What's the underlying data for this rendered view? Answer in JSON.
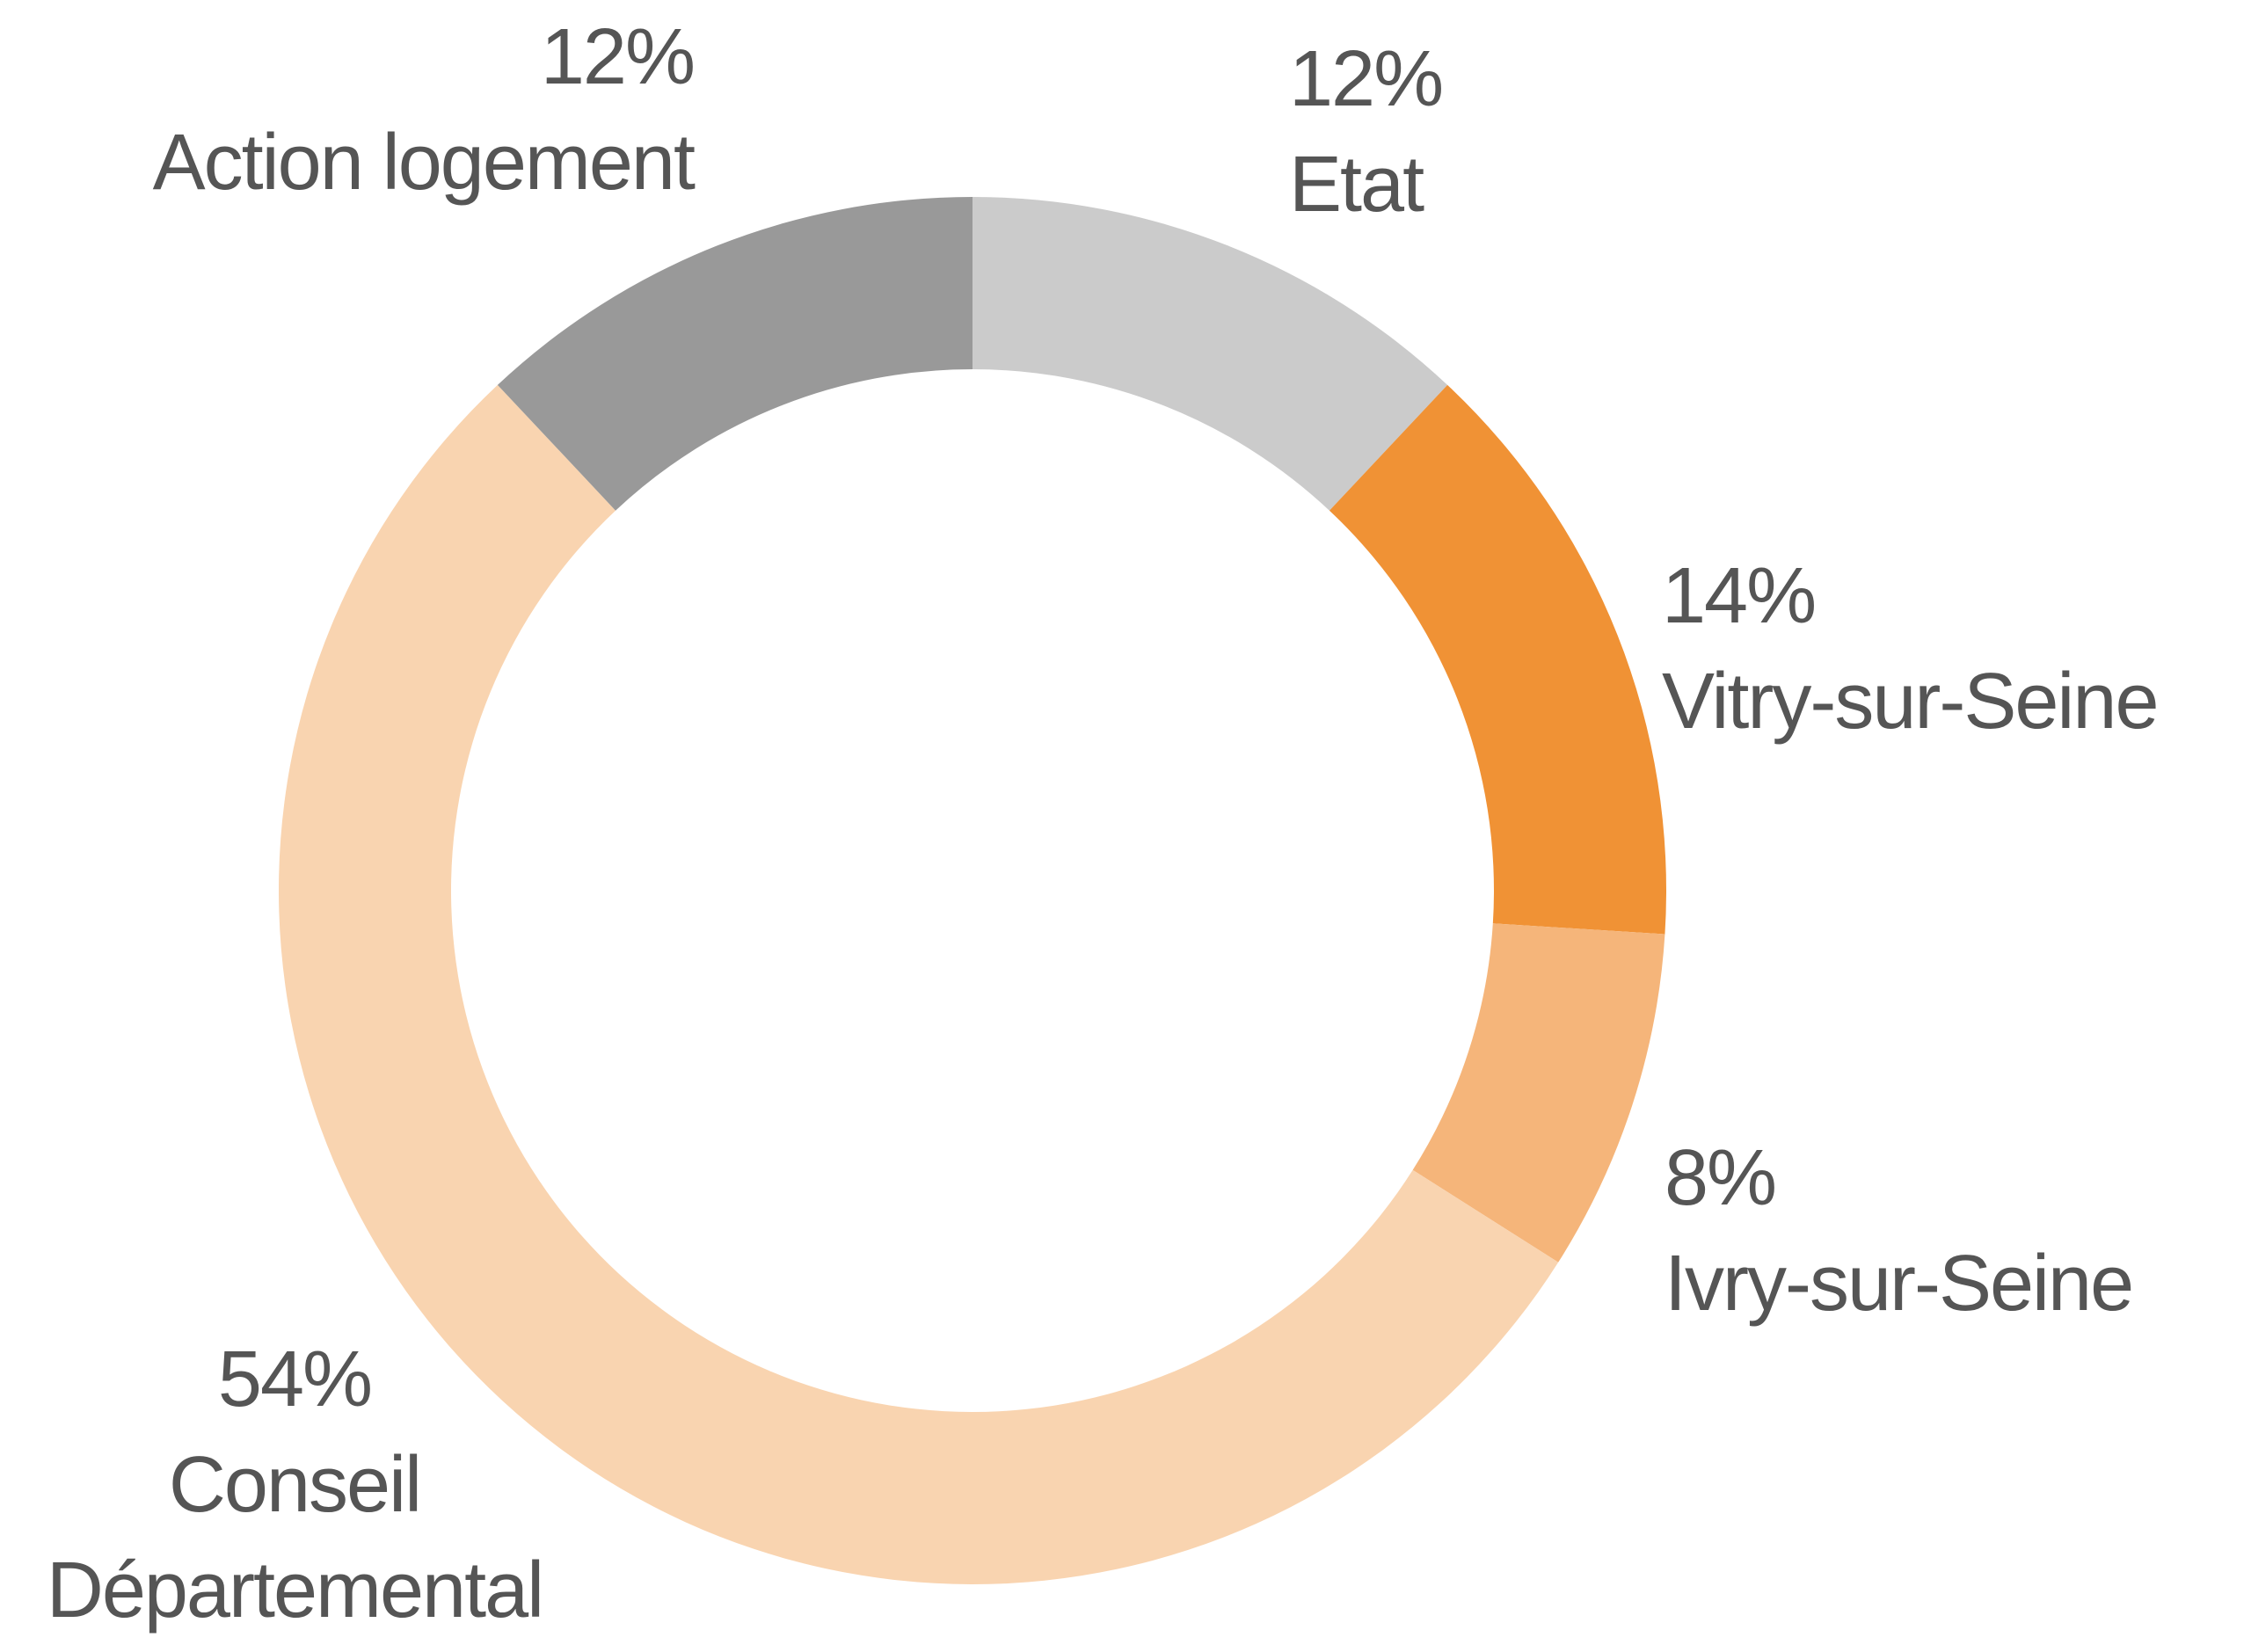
{
  "chart_data": {
    "type": "donut",
    "categories": [
      "Etat",
      "Vitry-sur-Seine",
      "Ivry-sur-Seine",
      "Conseil Départemental",
      "Action logement"
    ],
    "values": [
      12,
      14,
      8,
      54,
      12
    ],
    "value_labels": [
      "12%",
      "14%",
      "8%",
      "54%",
      "12%"
    ],
    "colors": [
      "#cbcbcb",
      "#f09235",
      "#f5b57a",
      "#f9d4b0",
      "#999999"
    ]
  }
}
